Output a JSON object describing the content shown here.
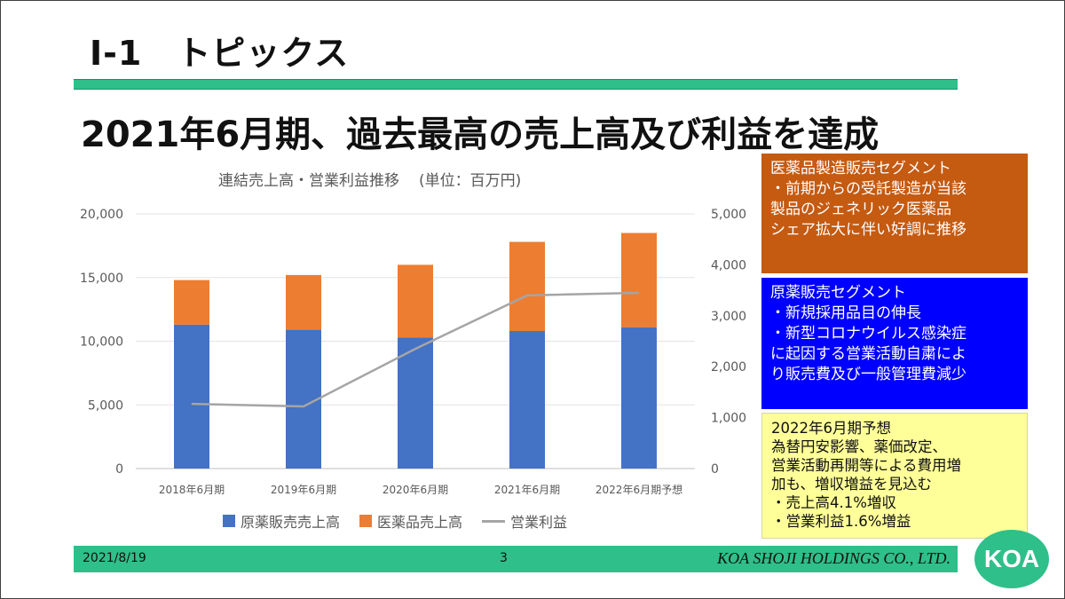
{
  "slide": {
    "section_title": "Ⅰ-1　トピックス",
    "headline": "2021年6月期、過去最高の売上高及び利益を達成",
    "footer": {
      "date": "2021/8/19",
      "page": "3",
      "company": "KOA SHOJI HOLDINGS CO., LTD.",
      "logo": "KOA"
    },
    "colors": {
      "accent_green": "#2fbf8a",
      "orange_box": "#c55a11",
      "blue_box": "#0000ff",
      "yellow_box": "#ffff99"
    }
  },
  "boxes": {
    "box1": {
      "lines": [
        "医薬品製造販売セグメント",
        "・前期からの受託製造が当該",
        "製品のジェネリック医薬品",
        "シェア拡大に伴い好調に推移"
      ]
    },
    "box2": {
      "lines": [
        "原薬販売セグメント",
        "・新規採用品目の伸長",
        "・新型コロナウイルス感染症",
        "に起因する営業活動自粛によ",
        "り販売費及び一般管理費減少"
      ]
    },
    "box3": {
      "lines": [
        "2022年6月期予想",
        "為替円安影響、薬価改定、",
        "営業活動再開等による費用増",
        "加も、増収増益を見込む",
        "・売上高4.1%増収",
        "・営業利益1.6%増益"
      ]
    }
  },
  "chart_data": {
    "type": "bar",
    "stacked": true,
    "title": "連結売上高・営業利益推移",
    "unit_note": "(単位：百万円)",
    "categories": [
      "2018年6月期",
      "2019年6月期",
      "2020年6月期",
      "2021年6月期",
      "2022年6月期予想"
    ],
    "series": [
      {
        "name": "原薬販売売上高",
        "type": "bar",
        "axis": "left",
        "color": "#4472c4",
        "values": [
          11300,
          10900,
          10300,
          10800,
          11100
        ]
      },
      {
        "name": "医薬品売上高",
        "type": "bar",
        "axis": "left",
        "color": "#ed7d31",
        "values": [
          3500,
          4300,
          5700,
          7000,
          7400
        ]
      },
      {
        "name": "営業利益",
        "type": "line",
        "axis": "right",
        "color": "#a5a5a5",
        "values": [
          1270,
          1220,
          2350,
          3400,
          3450
        ]
      }
    ],
    "y_left": {
      "min": 0,
      "max": 20000,
      "ticks": [
        "0",
        "5,000",
        "10,000",
        "15,000",
        "20,000"
      ]
    },
    "y_right": {
      "min": 0,
      "max": 5000,
      "ticks": [
        "0",
        "1,000",
        "2,000",
        "3,000",
        "4,000",
        "5,000"
      ]
    },
    "grid": true,
    "legend_position": "bottom"
  }
}
